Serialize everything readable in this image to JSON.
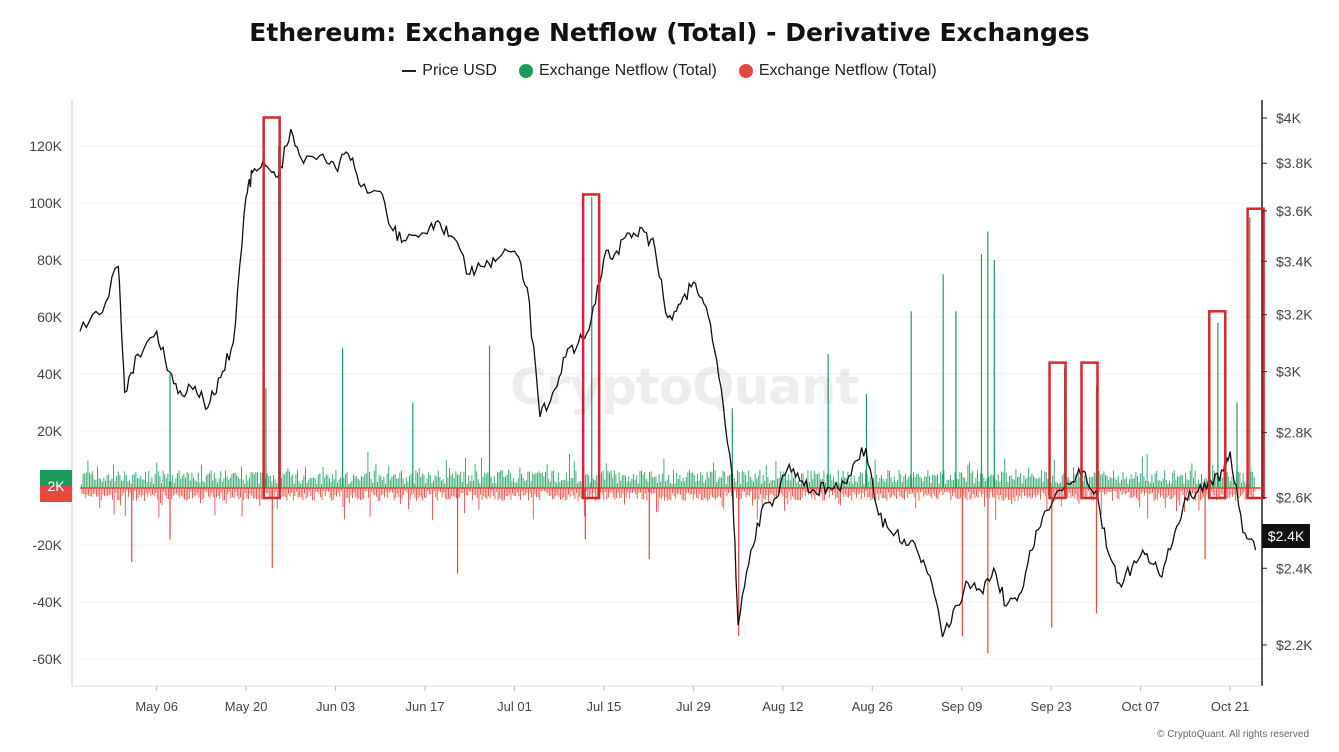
{
  "title": "Ethereum: Exchange Netflow (Total) - Derivative Exchanges",
  "legend": {
    "price": "Price USD",
    "inflow": "Exchange Netflow (Total)",
    "outflow": "Exchange Netflow (Total)"
  },
  "colors": {
    "price": "#111111",
    "positive": "#1a9d5c",
    "negative": "#e8473f",
    "highlight": "#d9262d",
    "price_badge": "#111111"
  },
  "badges": {
    "netflow_current": "2K",
    "price_current": "$2.4K"
  },
  "watermark": "CryptoQuant",
  "copyright": "© CryptoQuant. All rights reserved",
  "chart_data": {
    "type": "bar+line",
    "left_axis": {
      "ticks": [
        "120K",
        "100K",
        "80K",
        "60K",
        "40K",
        "20K",
        "-20K",
        "-40K",
        "-60K"
      ],
      "values": [
        120000,
        100000,
        80000,
        60000,
        40000,
        20000,
        -20000,
        -40000,
        -60000
      ],
      "ylim": [
        -70000,
        135000
      ]
    },
    "right_axis": {
      "ticks": [
        "$4K",
        "$3.8K",
        "$3.6K",
        "$3.4K",
        "$3.2K",
        "$3K",
        "$2.8K",
        "$2.6K",
        "$2.4K",
        "$2.2K"
      ],
      "values": [
        4000,
        3800,
        3600,
        3400,
        3200,
        3000,
        2800,
        2600,
        2400,
        2200
      ],
      "scale": "log"
    },
    "x_ticks": [
      "May 06",
      "May 20",
      "Jun 03",
      "Jun 17",
      "Jul 01",
      "Jul 15",
      "Jul 29",
      "Aug 12",
      "Aug 26",
      "Sep 09",
      "Sep 23",
      "Oct 07",
      "Oct 21"
    ],
    "x_range": [
      "2024-04-24",
      "2024-10-26"
    ],
    "price_series": [
      [
        "2024-04-24",
        3140
      ],
      [
        "2024-04-27",
        3200
      ],
      [
        "2024-04-30",
        3380
      ],
      [
        "2024-05-01",
        2930
      ],
      [
        "2024-05-03",
        3060
      ],
      [
        "2024-05-06",
        3140
      ],
      [
        "2024-05-08",
        3000
      ],
      [
        "2024-05-10",
        2920
      ],
      [
        "2024-05-12",
        2950
      ],
      [
        "2024-05-14",
        2880
      ],
      [
        "2024-05-16",
        2980
      ],
      [
        "2024-05-18",
        3100
      ],
      [
        "2024-05-20",
        3660
      ],
      [
        "2024-05-21",
        3760
      ],
      [
        "2024-05-23",
        3790
      ],
      [
        "2024-05-25",
        3740
      ],
      [
        "2024-05-27",
        3950
      ],
      [
        "2024-05-29",
        3800
      ],
      [
        "2024-06-01",
        3840
      ],
      [
        "2024-06-03",
        3780
      ],
      [
        "2024-06-05",
        3840
      ],
      [
        "2024-06-07",
        3700
      ],
      [
        "2024-06-10",
        3680
      ],
      [
        "2024-06-12",
        3520
      ],
      [
        "2024-06-14",
        3480
      ],
      [
        "2024-06-17",
        3510
      ],
      [
        "2024-06-19",
        3560
      ],
      [
        "2024-06-21",
        3500
      ],
      [
        "2024-06-24",
        3350
      ],
      [
        "2024-06-26",
        3380
      ],
      [
        "2024-06-28",
        3400
      ],
      [
        "2024-07-01",
        3440
      ],
      [
        "2024-07-03",
        3300
      ],
      [
        "2024-07-05",
        2850
      ],
      [
        "2024-07-07",
        2930
      ],
      [
        "2024-07-09",
        3050
      ],
      [
        "2024-07-11",
        3100
      ],
      [
        "2024-07-13",
        3180
      ],
      [
        "2024-07-15",
        3410
      ],
      [
        "2024-07-17",
        3440
      ],
      [
        "2024-07-19",
        3510
      ],
      [
        "2024-07-21",
        3530
      ],
      [
        "2024-07-23",
        3450
      ],
      [
        "2024-07-25",
        3190
      ],
      [
        "2024-07-27",
        3240
      ],
      [
        "2024-07-29",
        3320
      ],
      [
        "2024-07-31",
        3230
      ],
      [
        "2024-08-02",
        2980
      ],
      [
        "2024-08-04",
        2680
      ],
      [
        "2024-08-05",
        2250
      ],
      [
        "2024-08-07",
        2450
      ],
      [
        "2024-08-09",
        2580
      ],
      [
        "2024-08-11",
        2600
      ],
      [
        "2024-08-13",
        2700
      ],
      [
        "2024-08-15",
        2650
      ],
      [
        "2024-08-17",
        2620
      ],
      [
        "2024-08-19",
        2630
      ],
      [
        "2024-08-21",
        2620
      ],
      [
        "2024-08-23",
        2700
      ],
      [
        "2024-08-25",
        2750
      ],
      [
        "2024-08-27",
        2550
      ],
      [
        "2024-08-29",
        2500
      ],
      [
        "2024-08-31",
        2480
      ],
      [
        "2024-09-02",
        2450
      ],
      [
        "2024-09-04",
        2380
      ],
      [
        "2024-09-06",
        2220
      ],
      [
        "2024-09-08",
        2300
      ],
      [
        "2024-09-10",
        2360
      ],
      [
        "2024-09-12",
        2340
      ],
      [
        "2024-09-14",
        2400
      ],
      [
        "2024-09-16",
        2300
      ],
      [
        "2024-09-18",
        2330
      ],
      [
        "2024-09-20",
        2450
      ],
      [
        "2024-09-22",
        2560
      ],
      [
        "2024-09-24",
        2620
      ],
      [
        "2024-09-26",
        2640
      ],
      [
        "2024-09-28",
        2680
      ],
      [
        "2024-09-30",
        2620
      ],
      [
        "2024-10-02",
        2440
      ],
      [
        "2024-10-04",
        2350
      ],
      [
        "2024-10-06",
        2420
      ],
      [
        "2024-10-08",
        2440
      ],
      [
        "2024-10-10",
        2380
      ],
      [
        "2024-10-12",
        2470
      ],
      [
        "2024-10-14",
        2600
      ],
      [
        "2024-10-16",
        2620
      ],
      [
        "2024-10-18",
        2650
      ],
      [
        "2024-10-20",
        2680
      ],
      [
        "2024-10-21",
        2740
      ],
      [
        "2024-10-23",
        2500
      ],
      [
        "2024-10-25",
        2450
      ]
    ],
    "highlighted_spikes": [
      {
        "date": "2024-05-24",
        "value": 130000
      },
      {
        "date": "2024-07-13",
        "value": 103000
      },
      {
        "date": "2024-09-24",
        "value": 44000
      },
      {
        "date": "2024-09-29",
        "value": 44000
      },
      {
        "date": "2024-10-19",
        "value": 62000
      },
      {
        "date": "2024-10-25",
        "value": 98000
      }
    ],
    "notable_spikes": [
      {
        "date": "2024-05-23",
        "value": 35000
      },
      {
        "date": "2024-05-25",
        "value": 120000
      },
      {
        "date": "2024-05-24",
        "value": -28000
      },
      {
        "date": "2024-05-08",
        "value": 40000
      },
      {
        "date": "2024-05-08",
        "value": -18000
      },
      {
        "date": "2024-05-02",
        "value": -26000
      },
      {
        "date": "2024-06-04",
        "value": 49000
      },
      {
        "date": "2024-06-15",
        "value": 30000
      },
      {
        "date": "2024-06-27",
        "value": 50000
      },
      {
        "date": "2024-06-22",
        "value": -30000
      },
      {
        "date": "2024-07-13",
        "value": 102000
      },
      {
        "date": "2024-07-12",
        "value": -18000
      },
      {
        "date": "2024-07-22",
        "value": -25000
      },
      {
        "date": "2024-08-04",
        "value": 28000
      },
      {
        "date": "2024-08-05",
        "value": -52000
      },
      {
        "date": "2024-08-19",
        "value": 47000
      },
      {
        "date": "2024-08-25",
        "value": 33000
      },
      {
        "date": "2024-09-01",
        "value": 62000
      },
      {
        "date": "2024-09-12",
        "value": 82000
      },
      {
        "date": "2024-09-13",
        "value": 90000
      },
      {
        "date": "2024-09-14",
        "value": 80000
      },
      {
        "date": "2024-09-06",
        "value": 75000
      },
      {
        "date": "2024-09-08",
        "value": 62000
      },
      {
        "date": "2024-09-09",
        "value": -52000
      },
      {
        "date": "2024-09-13",
        "value": -58000
      },
      {
        "date": "2024-09-23",
        "value": -49000
      },
      {
        "date": "2024-09-25",
        "value": 42000
      },
      {
        "date": "2024-09-30",
        "value": 36000
      },
      {
        "date": "2024-09-30",
        "value": -44000
      },
      {
        "date": "2024-10-19",
        "value": 58000
      },
      {
        "date": "2024-10-24",
        "value": 95000
      },
      {
        "date": "2024-10-22",
        "value": 30000
      },
      {
        "date": "2024-10-17",
        "value": -25000
      }
    ]
  }
}
